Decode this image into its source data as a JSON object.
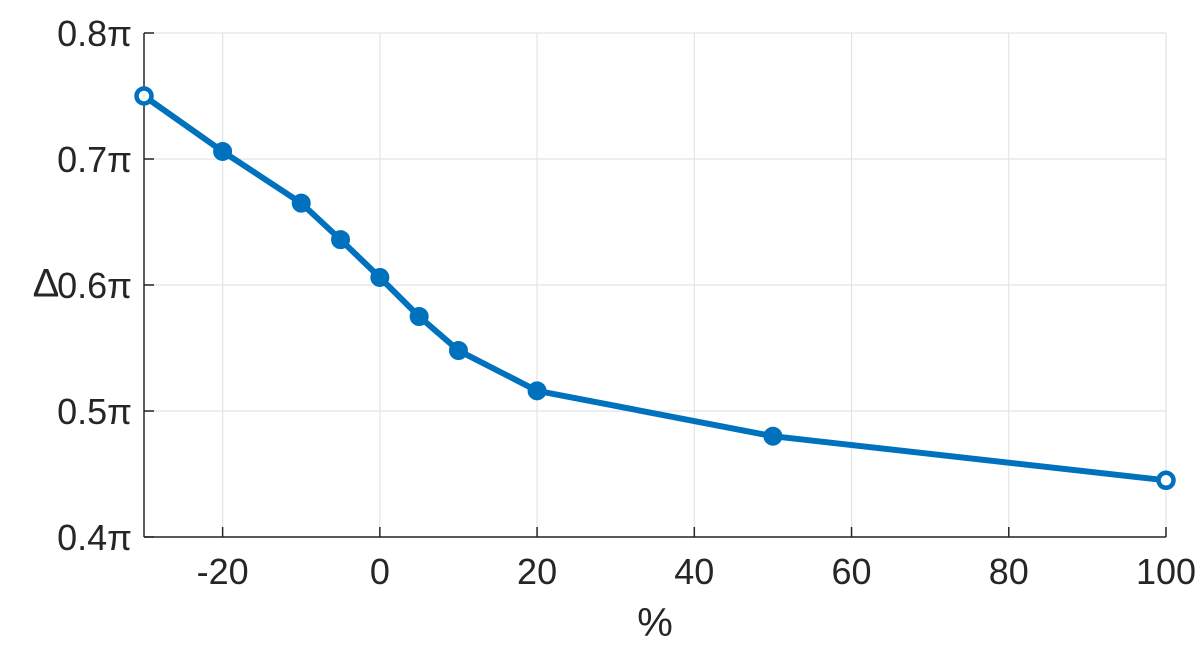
{
  "chart_data": {
    "type": "line",
    "xlabel": "%",
    "ylabel": "Δ",
    "xlim": [
      -30,
      100
    ],
    "ylim": [
      0.4,
      0.8
    ],
    "grid": true,
    "series": [
      {
        "color": "#0072BD",
        "x": [
          -30,
          -20,
          -10,
          -5,
          0,
          5,
          10,
          20,
          50,
          100
        ],
        "y": [
          0.75,
          0.706,
          0.665,
          0.636,
          0.606,
          0.575,
          0.548,
          0.516,
          0.48,
          0.445
        ]
      }
    ],
    "filled_markers": [
      false,
      true,
      true,
      true,
      true,
      true,
      true,
      true,
      true,
      false
    ],
    "x_ticks": [
      {
        "value": -20,
        "label": "-20"
      },
      {
        "value": 0,
        "label": "0"
      },
      {
        "value": 20,
        "label": "20"
      },
      {
        "value": 40,
        "label": "40"
      },
      {
        "value": 60,
        "label": "60"
      },
      {
        "value": 80,
        "label": "80"
      },
      {
        "value": 100,
        "label": "100"
      }
    ],
    "y_ticks": [
      {
        "value": 0.4,
        "label": "0.4π"
      },
      {
        "value": 0.5,
        "label": "0.5π"
      },
      {
        "value": 0.6,
        "label": "0.6π"
      },
      {
        "value": 0.7,
        "label": "0.7π"
      },
      {
        "value": 0.8,
        "label": "0.8π"
      }
    ]
  }
}
